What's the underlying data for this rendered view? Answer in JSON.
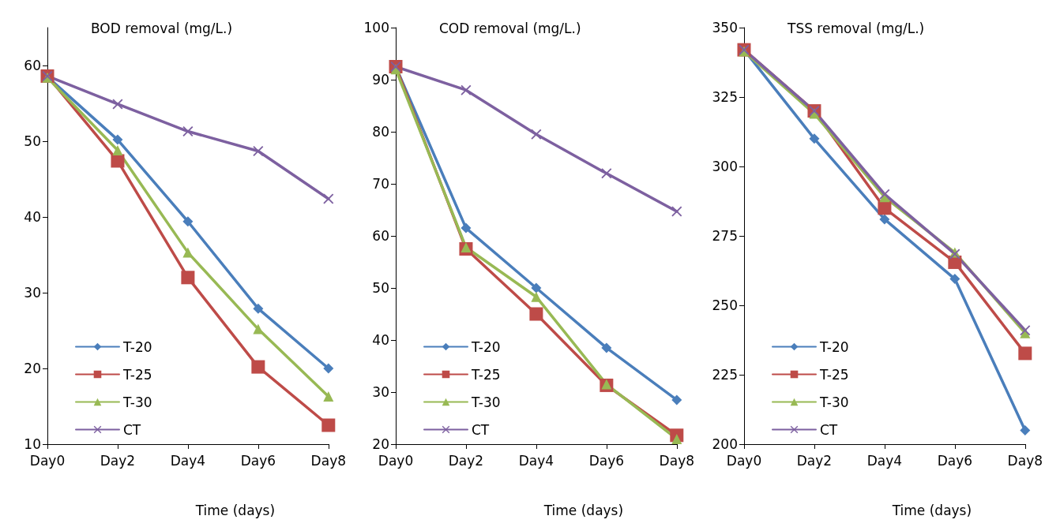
{
  "chart_data": [
    {
      "type": "line",
      "title": "BOD removal (mg/L.)",
      "xlabel": "Time (days)",
      "categories": [
        "Day0",
        "Day2",
        "Day4",
        "Day6",
        "Day8"
      ],
      "ylim": [
        10,
        65
      ],
      "yticks": [
        10,
        20,
        30,
        40,
        50,
        60
      ],
      "grid": false,
      "legend": "bottom left",
      "series": [
        {
          "name": "T-20",
          "color": "#4a7ebb",
          "marker": "diamond",
          "values": [
            58.5,
            50.2,
            39.4,
            27.9,
            20
          ]
        },
        {
          "name": "T-25",
          "color": "#be4b48",
          "marker": "square",
          "values": [
            58.6,
            47.4,
            32,
            20.2,
            12.5
          ]
        },
        {
          "name": "T-30",
          "color": "#98b954",
          "marker": "triangle",
          "values": [
            58.4,
            48.8,
            35.3,
            25.2,
            16.3
          ]
        },
        {
          "name": "CT",
          "color": "#7d60a0",
          "marker": "cross",
          "values": [
            58.6,
            54.9,
            51.3,
            48.7,
            42.4
          ]
        }
      ]
    },
    {
      "type": "line",
      "title": "COD removal (mg/L.)",
      "xlabel": "Time (days)",
      "categories": [
        "Day0",
        "Day2",
        "Day4",
        "Day6",
        "Day8"
      ],
      "ylim": [
        20,
        100
      ],
      "yticks": [
        20,
        30,
        40,
        50,
        60,
        70,
        80,
        90,
        100
      ],
      "grid": false,
      "legend": "bottom left",
      "series": [
        {
          "name": "T-20",
          "color": "#4a7ebb",
          "marker": "diamond",
          "values": [
            92.5,
            61.5,
            50,
            38.5,
            28.5
          ]
        },
        {
          "name": "T-25",
          "color": "#be4b48",
          "marker": "square",
          "values": [
            92.5,
            57.5,
            45,
            31.3,
            21.7
          ]
        },
        {
          "name": "T-30",
          "color": "#98b954",
          "marker": "triangle",
          "values": [
            92,
            57.8,
            48.3,
            31.5,
            21
          ]
        },
        {
          "name": "CT",
          "color": "#7d60a0",
          "marker": "cross",
          "values": [
            92.5,
            88,
            79.5,
            72,
            64.7
          ]
        }
      ]
    },
    {
      "type": "line",
      "title": "TSS removal (mg/L.)",
      "xlabel": "Time (days)",
      "categories": [
        "Day0",
        "Day2",
        "Day4",
        "Day6",
        "Day8"
      ],
      "ylim": [
        200,
        350
      ],
      "yticks": [
        200,
        225,
        250,
        275,
        300,
        325,
        350
      ],
      "grid": false,
      "legend": "bottom left",
      "series": [
        {
          "name": "T-20",
          "color": "#4a7ebb",
          "marker": "diamond",
          "values": [
            342,
            310,
            281,
            259.5,
            205
          ]
        },
        {
          "name": "T-25",
          "color": "#be4b48",
          "marker": "square",
          "values": [
            342,
            320,
            285,
            265.5,
            232.7
          ]
        },
        {
          "name": "T-30",
          "color": "#98b954",
          "marker": "triangle",
          "values": [
            341.5,
            319,
            289,
            269,
            240
          ]
        },
        {
          "name": "CT",
          "color": "#7d60a0",
          "marker": "cross",
          "values": [
            342,
            320,
            290,
            268.5,
            241
          ]
        }
      ]
    }
  ]
}
